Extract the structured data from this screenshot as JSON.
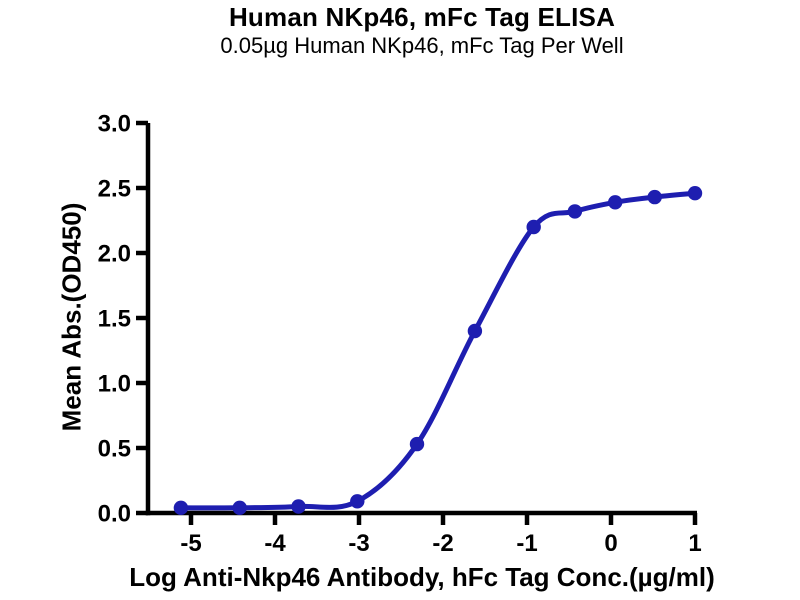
{
  "page": {
    "background": "#ffffff",
    "text_color": "#000000"
  },
  "chart_data": {
    "type": "scatter",
    "title": "Human NKp46, mFc Tag ELISA",
    "subtitle": "0.05µg Human NKp46, mFc Tag Per Well",
    "xlabel": "Log Anti-Nkp46 Antibody, hFc Tag Conc.(µg/ml)",
    "ylabel": "Mean Abs.(OD450)",
    "series": [
      {
        "name": "Anti-Nkp46 Antibody, hFc Tag",
        "x": [
          -5.12,
          -4.42,
          -3.72,
          -3.02,
          -2.31,
          -1.62,
          -0.92,
          -0.43,
          0.05,
          0.52,
          1.0
        ],
        "y": [
          0.04,
          0.04,
          0.05,
          0.09,
          0.53,
          1.4,
          2.2,
          2.32,
          2.39,
          2.43,
          2.46
        ],
        "marker": "circle",
        "line": "smooth-sigmoid-fit"
      }
    ],
    "xtick_values": [
      -5,
      -4,
      -3,
      -2,
      -1,
      0,
      1
    ],
    "xtick_labels": [
      "-5",
      "-4",
      "-3",
      "-2",
      "-1",
      "0",
      "1"
    ],
    "ytick_values": [
      0,
      0.5,
      1,
      1.5,
      2,
      2.5,
      3
    ],
    "ytick_labels": [
      "0.0",
      "0.5",
      "1.0",
      "1.5",
      "2.0",
      "2.5",
      "3.0"
    ],
    "xlim": [
      -5.5,
      1.0
    ],
    "ylim": [
      0.0,
      3.0
    ],
    "grid": false,
    "legend": null,
    "line_color": "#1e1eb0",
    "marker_color": "#1e1eb0",
    "axis_color": "#000000"
  }
}
